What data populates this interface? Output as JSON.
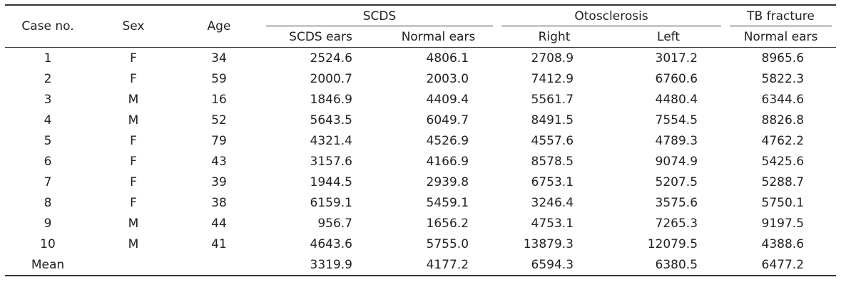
{
  "table": {
    "headers": {
      "case_no": "Case no.",
      "sex": "Sex",
      "age": "Age",
      "groups": {
        "scds": "SCDS",
        "otosclerosis": "Otosclerosis",
        "tb_fracture": "TB fracture"
      },
      "sub": {
        "scds_ears": "SCDS ears",
        "scds_normal": "Normal ears",
        "right": "Right",
        "left": "Left",
        "tb_normal": "Normal ears"
      }
    },
    "rows": [
      {
        "case": "1",
        "sex": "F",
        "age": "34",
        "scds_ears": "2524.6",
        "scds_normal": "4806.1",
        "oto_right": "2708.9",
        "oto_left": "3017.2",
        "tb_normal": "8965.6"
      },
      {
        "case": "2",
        "sex": "F",
        "age": "59",
        "scds_ears": "2000.7",
        "scds_normal": "2003.0",
        "oto_right": "7412.9",
        "oto_left": "6760.6",
        "tb_normal": "5822.3"
      },
      {
        "case": "3",
        "sex": "M",
        "age": "16",
        "scds_ears": "1846.9",
        "scds_normal": "4409.4",
        "oto_right": "5561.7",
        "oto_left": "4480.4",
        "tb_normal": "6344.6"
      },
      {
        "case": "4",
        "sex": "M",
        "age": "52",
        "scds_ears": "5643.5",
        "scds_normal": "6049.7",
        "oto_right": "8491.5",
        "oto_left": "7554.5",
        "tb_normal": "8826.8"
      },
      {
        "case": "5",
        "sex": "F",
        "age": "79",
        "scds_ears": "4321.4",
        "scds_normal": "4526.9",
        "oto_right": "4557.6",
        "oto_left": "4789.3",
        "tb_normal": "4762.2"
      },
      {
        "case": "6",
        "sex": "F",
        "age": "43",
        "scds_ears": "3157.6",
        "scds_normal": "4166.9",
        "oto_right": "8578.5",
        "oto_left": "9074.9",
        "tb_normal": "5425.6"
      },
      {
        "case": "7",
        "sex": "F",
        "age": "39",
        "scds_ears": "1944.5",
        "scds_normal": "2939.8",
        "oto_right": "6753.1",
        "oto_left": "5207.5",
        "tb_normal": "5288.7"
      },
      {
        "case": "8",
        "sex": "F",
        "age": "38",
        "scds_ears": "6159.1",
        "scds_normal": "5459.1",
        "oto_right": "3246.4",
        "oto_left": "3575.6",
        "tb_normal": "5750.1"
      },
      {
        "case": "9",
        "sex": "M",
        "age": "44",
        "scds_ears": "956.7",
        "scds_normal": "1656.2",
        "oto_right": "4753.1",
        "oto_left": "7265.3",
        "tb_normal": "9197.5"
      },
      {
        "case": "10",
        "sex": "M",
        "age": "41",
        "scds_ears": "4643.6",
        "scds_normal": "5755.0",
        "oto_right": "13879.3",
        "oto_left": "12079.5",
        "tb_normal": "4388.6"
      }
    ],
    "mean": {
      "label": "Mean",
      "scds_ears": "3319.9",
      "scds_normal": "4177.2",
      "oto_right": "6594.3",
      "oto_left": "6380.5",
      "tb_normal": "6477.2"
    }
  }
}
